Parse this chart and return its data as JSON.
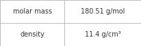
{
  "rows": [
    {
      "label": "molar mass",
      "value": "180.51 g/mol"
    },
    {
      "label": "density",
      "value": "11.4 g/cm³"
    }
  ],
  "col_split": 0.455,
  "background_color": "#ffffff",
  "border_color": "#b0b0b0",
  "text_color": "#333333",
  "font_size": 7.0,
  "figsize": [
    2.07,
    0.68
  ],
  "dpi": 100
}
